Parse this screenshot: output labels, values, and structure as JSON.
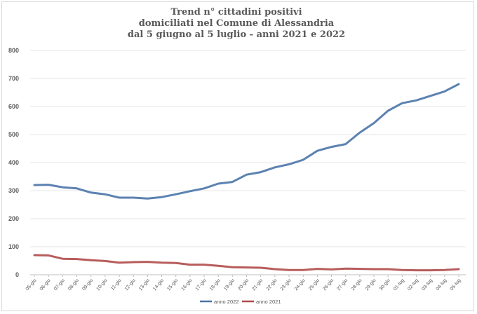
{
  "chart_data": {
    "type": "line",
    "title_lines": [
      "Trend n° cittadini positivi",
      "domiciliati nel Comune di Alessandria",
      "dal 5 giugno al 5 luglio - anni 2021 e 2022"
    ],
    "xlabel": "",
    "ylabel": "",
    "ylim": [
      0,
      800
    ],
    "yticks": [
      0,
      100,
      200,
      300,
      400,
      500,
      600,
      700,
      800
    ],
    "grid": true,
    "legend_position": "bottom",
    "categories": [
      "05-giu",
      "06-giu",
      "07-giu",
      "08-giu",
      "09-giu",
      "10-giu",
      "11-giu",
      "12-giu",
      "13-giu",
      "14-giu",
      "15-giu",
      "16-giu",
      "17-giu",
      "18-giu",
      "19-giu",
      "20-giu",
      "21-giu",
      "22-giu",
      "23-giu",
      "24-giu",
      "25-giu",
      "26-giu",
      "27-giu",
      "28-giu",
      "29-giu",
      "30-giu",
      "01-lug",
      "02-lug",
      "03-lug",
      "04-lug",
      "05-lug"
    ],
    "series": [
      {
        "name": "anno 2022",
        "color": "#4a74a8",
        "values": [
          320,
          321,
          312,
          308,
          293,
          287,
          275,
          275,
          272,
          277,
          287,
          298,
          308,
          325,
          331,
          357,
          366,
          383,
          394,
          410,
          442,
          456,
          466,
          507,
          541,
          585,
          612,
          622,
          638,
          654,
          680
        ]
      },
      {
        "name": "anno 2021",
        "color": "#b04a4a",
        "values": [
          70,
          69,
          57,
          56,
          52,
          49,
          43,
          45,
          46,
          43,
          42,
          36,
          36,
          32,
          27,
          26,
          25,
          20,
          17,
          17,
          21,
          19,
          22,
          21,
          20,
          20,
          17,
          16,
          16,
          17,
          20
        ]
      }
    ]
  }
}
